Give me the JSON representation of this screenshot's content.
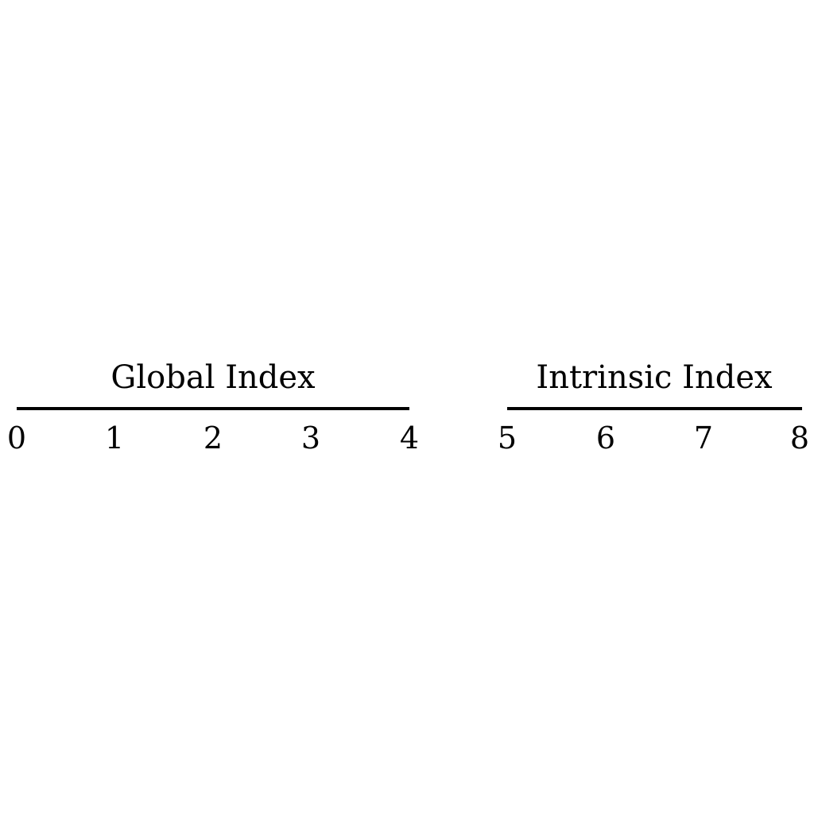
{
  "diagram": {
    "groups": [
      {
        "label": "Global Index",
        "indices": [
          "0",
          "1",
          "2",
          "3",
          "4"
        ]
      },
      {
        "label": "Intrinsic Index",
        "indices": [
          "5",
          "6",
          "7",
          "8"
        ]
      }
    ]
  }
}
